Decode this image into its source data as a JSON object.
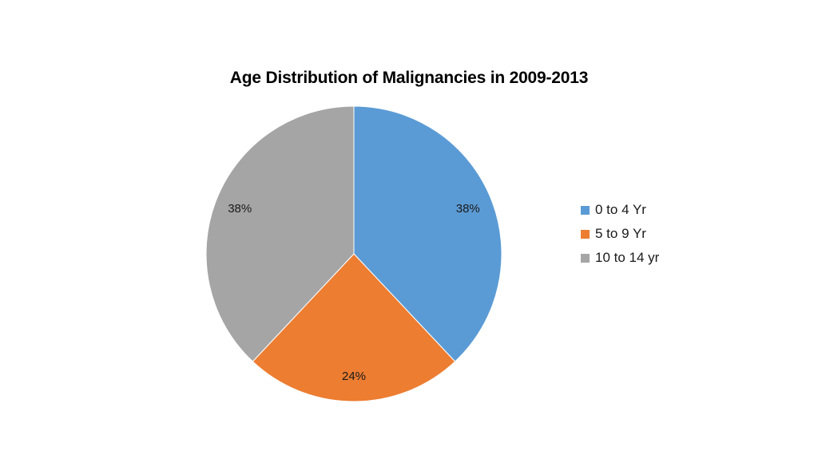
{
  "chart_data": {
    "type": "pie",
    "title": "Age Distribution of Malignancies in 2009-2013",
    "categories": [
      "0 to 4 Yr",
      "5 to 9 Yr",
      "10 to 14 yr"
    ],
    "values": [
      38,
      24,
      38
    ],
    "data_labels": [
      "38%",
      "24%",
      "38%"
    ],
    "colors": [
      "#5b9bd5",
      "#ed7d31",
      "#a5a5a5"
    ],
    "legend_position": "right",
    "start_angle": "12 o'clock, clockwise"
  }
}
